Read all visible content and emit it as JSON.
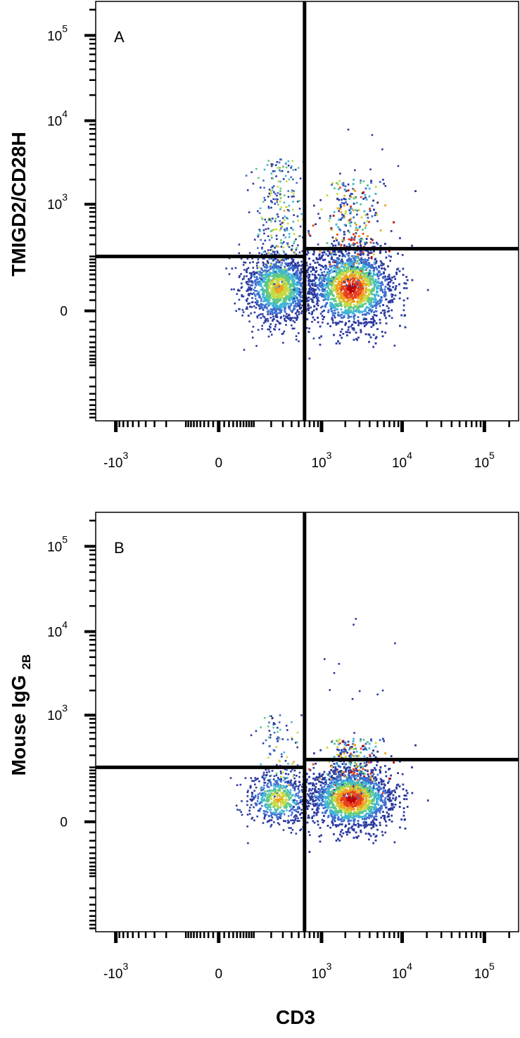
{
  "figure": {
    "x_axis_title": "CD3"
  },
  "chart_data": [
    {
      "type": "scatter",
      "panel_label": "A",
      "ylabel": "TMIGD2/CD28H",
      "xlabel": "CD3",
      "x_scale": "biexponential",
      "y_scale": "biexponential",
      "x_ticks": [
        {
          "base": "-10",
          "exp": "3",
          "value": -1000
        },
        {
          "base": "0",
          "exp": "",
          "value": 0
        },
        {
          "base": "10",
          "exp": "3",
          "value": 1000
        },
        {
          "base": "10",
          "exp": "4",
          "value": 10000
        },
        {
          "base": "10",
          "exp": "5",
          "value": 100000
        }
      ],
      "y_ticks": [
        {
          "base": "0",
          "exp": "",
          "value": 0
        },
        {
          "base": "10",
          "exp": "3",
          "value": 1000
        },
        {
          "base": "10",
          "exp": "4",
          "value": 10000
        },
        {
          "base": "10",
          "exp": "5",
          "value": 100000
        }
      ],
      "quadrant_gates": {
        "x": 600,
        "y_left": 200,
        "y_right": 260
      },
      "populations": [
        {
          "name": "CD3- population",
          "center": [
            260,
            50
          ],
          "spread": [
            0.45,
            0.35
          ],
          "tail_to_y": 3500,
          "density": "medium"
        },
        {
          "name": "CD3+ population",
          "center": [
            2400,
            50
          ],
          "spread": [
            0.55,
            0.4
          ],
          "tail_to_y": 2000,
          "density": "high"
        }
      ]
    },
    {
      "type": "scatter",
      "panel_label": "B",
      "ylabel": "Mouse IgG",
      "ylabel_subscript": "2B",
      "xlabel": "CD3",
      "x_scale": "biexponential",
      "y_scale": "biexponential",
      "x_ticks": [
        {
          "base": "-10",
          "exp": "3",
          "value": -1000
        },
        {
          "base": "0",
          "exp": "",
          "value": 0
        },
        {
          "base": "10",
          "exp": "3",
          "value": 1000
        },
        {
          "base": "10",
          "exp": "4",
          "value": 10000
        },
        {
          "base": "10",
          "exp": "5",
          "value": 100000
        }
      ],
      "y_ticks": [
        {
          "base": "0",
          "exp": "",
          "value": 0
        },
        {
          "base": "10",
          "exp": "3",
          "value": 1000
        },
        {
          "base": "10",
          "exp": "4",
          "value": 10000
        },
        {
          "base": "10",
          "exp": "5",
          "value": 100000
        }
      ],
      "quadrant_gates": {
        "x": 600,
        "y_left": 200,
        "y_right": 260
      },
      "populations": [
        {
          "name": "CD3- population",
          "center": [
            260,
            50
          ],
          "spread": [
            0.4,
            0.25
          ],
          "tail_to_y": 1000,
          "density": "low"
        },
        {
          "name": "CD3+ population",
          "center": [
            2400,
            50
          ],
          "spread": [
            0.55,
            0.3
          ],
          "tail_to_y": 500,
          "density": "high"
        }
      ]
    }
  ],
  "colors": {
    "density_scale": [
      "#2b3aa0",
      "#3f6fd0",
      "#3fb4d8",
      "#5cc88a",
      "#c8d840",
      "#f0a020",
      "#e8401c",
      "#c00000"
    ],
    "gate_line": "#000000",
    "axis": "#000000"
  }
}
